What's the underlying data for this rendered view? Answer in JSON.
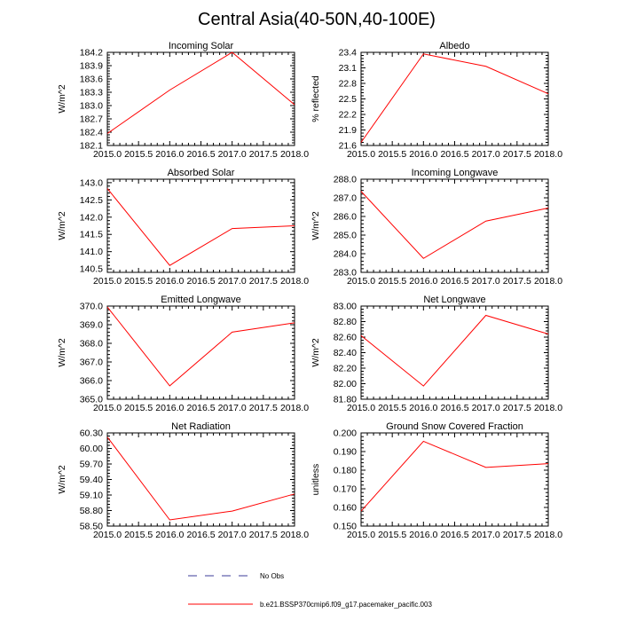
{
  "figure": {
    "title": "Central Asia(40-50N,40-100E)"
  },
  "legend": {
    "entries": [
      {
        "label": "No Obs",
        "style": "dashed",
        "color": "#3b3b9a"
      },
      {
        "label": "b.e21.BSSP370cmip6.f09_g17.pacemaker_pacific.003",
        "style": "solid",
        "color": "#ff0000"
      }
    ]
  },
  "line_color": "#ff0000",
  "chart_data": [
    {
      "type": "line",
      "title": "Incoming Solar",
      "ylabel": "W/m^2",
      "xlabel": "",
      "x": [
        2015.0,
        2016.0,
        2017.0,
        2018.0
      ],
      "y": [
        182.37,
        183.35,
        184.2,
        183.02
      ],
      "xlim": [
        2015.0,
        2018.0
      ],
      "ylim": [
        182.1,
        184.2
      ],
      "xticks": [
        "2015.0",
        "2015.5",
        "2016.0",
        "2016.5",
        "2017.0",
        "2017.5",
        "2018.0"
      ],
      "yticks": [
        "182.1",
        "182.4",
        "182.7",
        "183.0",
        "183.3",
        "183.6",
        "183.9",
        "184.2"
      ],
      "grid": false
    },
    {
      "type": "line",
      "title": "Albedo",
      "ylabel": "% reflected",
      "xlabel": "",
      "x": [
        2015.0,
        2016.0,
        2017.0,
        2018.0
      ],
      "y": [
        21.66,
        23.37,
        23.13,
        22.6
      ],
      "xlim": [
        2015.0,
        2018.0
      ],
      "ylim": [
        21.6,
        23.4
      ],
      "xticks": [
        "2015.0",
        "2015.5",
        "2016.0",
        "2016.5",
        "2017.0",
        "2017.5",
        "2018.0"
      ],
      "yticks": [
        "21.6",
        "21.9",
        "22.2",
        "22.5",
        "22.8",
        "23.1",
        "23.4"
      ],
      "grid": false
    },
    {
      "type": "line",
      "title": "Absorbed Solar",
      "ylabel": "W/m^2",
      "xlabel": "",
      "x": [
        2015.0,
        2016.0,
        2017.0,
        2018.0
      ],
      "y": [
        142.83,
        140.6,
        141.67,
        141.75
      ],
      "xlim": [
        2015.0,
        2018.0
      ],
      "ylim": [
        140.4,
        143.1
      ],
      "xticks": [
        "2015.0",
        "2015.5",
        "2016.0",
        "2016.5",
        "2017.0",
        "2017.5",
        "2018.0"
      ],
      "yticks": [
        "140.5",
        "141.0",
        "141.5",
        "142.0",
        "142.5",
        "143.0"
      ],
      "grid": false
    },
    {
      "type": "line",
      "title": "Incoming Longwave",
      "ylabel": "W/m^2",
      "xlabel": "",
      "x": [
        2015.0,
        2016.0,
        2017.0,
        2018.0
      ],
      "y": [
        287.35,
        283.75,
        285.75,
        286.45
      ],
      "xlim": [
        2015.0,
        2018.0
      ],
      "ylim": [
        283.0,
        288.0
      ],
      "xticks": [
        "2015.0",
        "2015.5",
        "2016.0",
        "2016.5",
        "2017.0",
        "2017.5",
        "2018.0"
      ],
      "yticks": [
        "283.0",
        "284.0",
        "285.0",
        "286.0",
        "287.0",
        "288.0"
      ],
      "grid": false
    },
    {
      "type": "line",
      "title": "Emitted Longwave",
      "ylabel": "W/m^2",
      "xlabel": "",
      "x": [
        2015.0,
        2016.0,
        2017.0,
        2018.0
      ],
      "y": [
        369.95,
        365.72,
        368.6,
        369.1
      ],
      "xlim": [
        2015.0,
        2018.0
      ],
      "ylim": [
        365.0,
        370.0
      ],
      "xticks": [
        "2015.0",
        "2015.5",
        "2016.0",
        "2016.5",
        "2017.0",
        "2017.5",
        "2018.0"
      ],
      "yticks": [
        "365.0",
        "366.0",
        "367.0",
        "368.0",
        "369.0",
        "370.0"
      ],
      "grid": false
    },
    {
      "type": "line",
      "title": "Net Longwave",
      "ylabel": "W/m^2",
      "xlabel": "",
      "x": [
        2015.0,
        2016.0,
        2017.0,
        2018.0
      ],
      "y": [
        82.62,
        81.97,
        82.88,
        82.64
      ],
      "xlim": [
        2015.0,
        2018.0
      ],
      "ylim": [
        81.8,
        83.0
      ],
      "xticks": [
        "2015.0",
        "2015.5",
        "2016.0",
        "2016.5",
        "2017.0",
        "2017.5",
        "2018.0"
      ],
      "yticks": [
        "81.80",
        "82.00",
        "82.20",
        "82.40",
        "82.60",
        "82.80",
        "83.00"
      ],
      "grid": false
    },
    {
      "type": "line",
      "title": "Net Radiation",
      "ylabel": "W/m^2",
      "xlabel": "",
      "x": [
        2015.0,
        2016.0,
        2017.0,
        2018.0
      ],
      "y": [
        60.22,
        58.62,
        58.79,
        59.12
      ],
      "xlim": [
        2015.0,
        2018.0
      ],
      "ylim": [
        58.5,
        60.3
      ],
      "xticks": [
        "2015.0",
        "2015.5",
        "2016.0",
        "2016.5",
        "2017.0",
        "2017.5",
        "2018.0"
      ],
      "yticks": [
        "58.50",
        "58.80",
        "59.10",
        "59.40",
        "59.70",
        "60.00",
        "60.30"
      ],
      "grid": false
    },
    {
      "type": "line",
      "title": "Ground Snow Covered Fraction",
      "ylabel": "unitless",
      "xlabel": "",
      "x": [
        2015.0,
        2016.0,
        2017.0,
        2018.0
      ],
      "y": [
        0.158,
        0.1955,
        0.1815,
        0.1835
      ],
      "xlim": [
        2015.0,
        2018.0
      ],
      "ylim": [
        0.15,
        0.2
      ],
      "xticks": [
        "2015.0",
        "2015.5",
        "2016.0",
        "2016.5",
        "2017.0",
        "2017.5",
        "2018.0"
      ],
      "yticks": [
        "0.150",
        "0.160",
        "0.170",
        "0.180",
        "0.190",
        "0.200"
      ],
      "grid": false
    }
  ]
}
